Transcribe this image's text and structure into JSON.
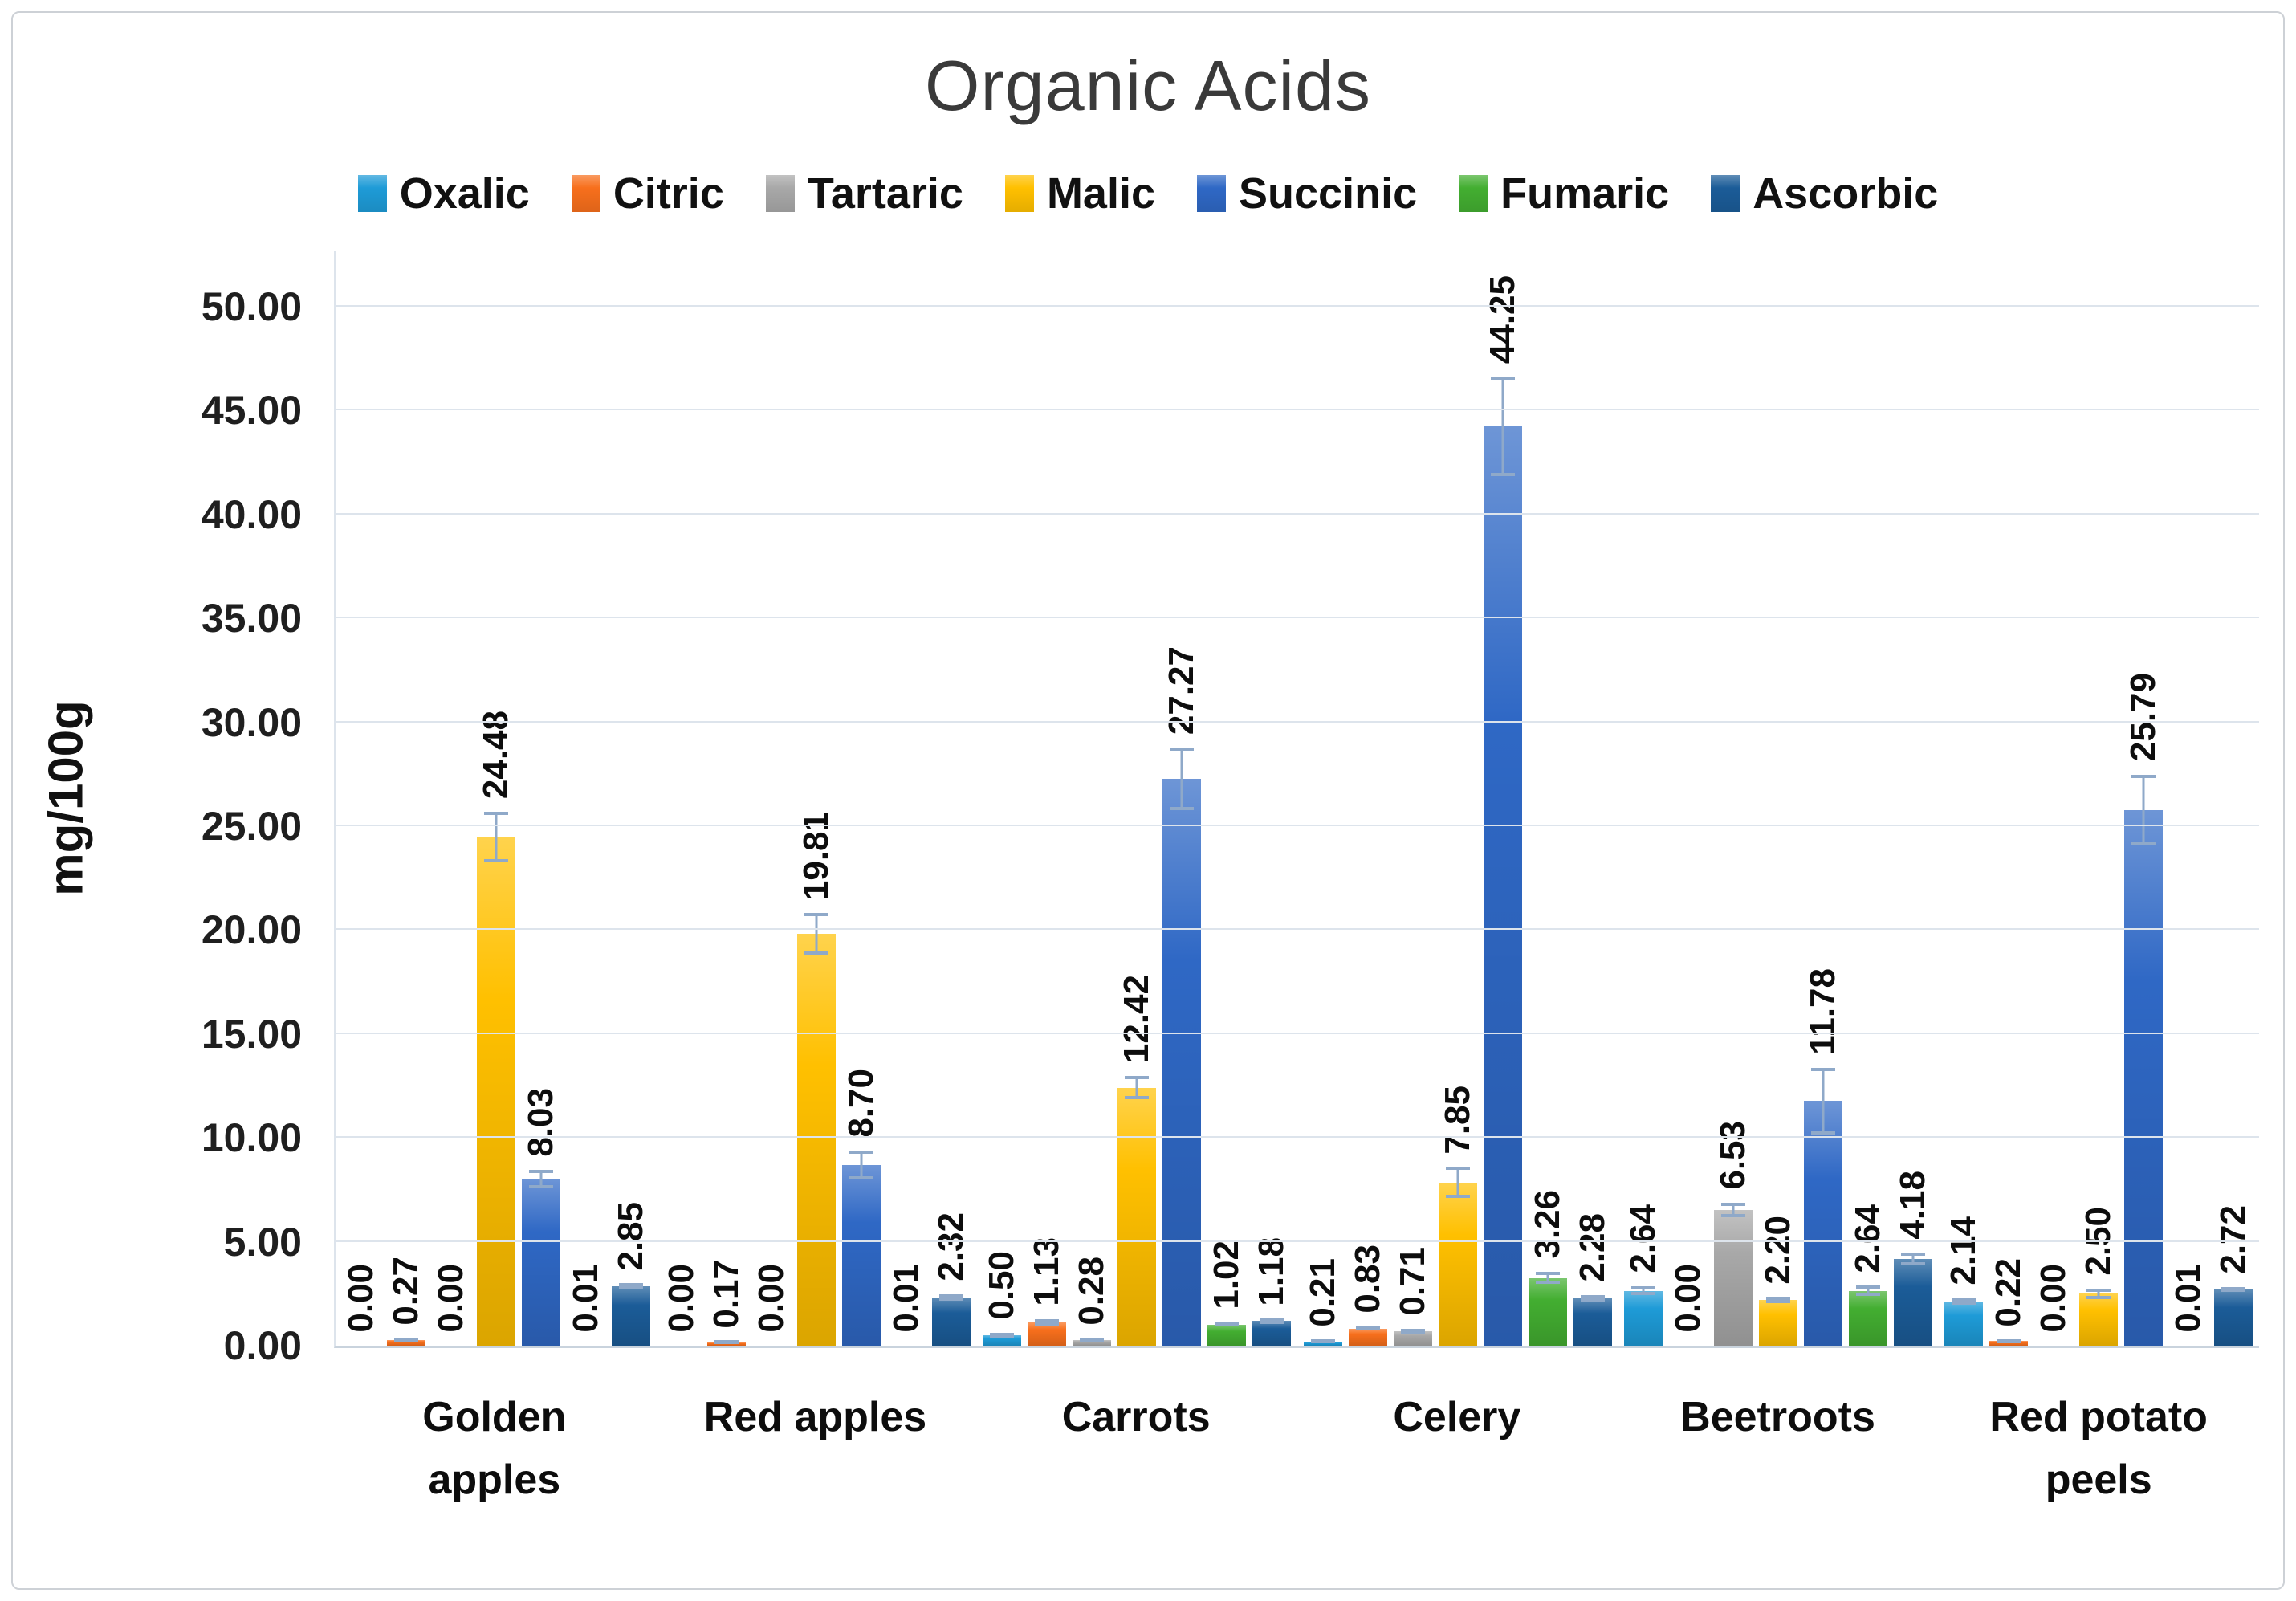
{
  "figure": {
    "title": "Organic Acids"
  },
  "chart_data": {
    "type": "bar",
    "title": "Organic Acids",
    "xlabel": "",
    "ylabel": "mg/100g",
    "ylim": [
      0,
      50
    ],
    "ytick_step": 5,
    "yticks": [
      "0.00",
      "5.00",
      "10.00",
      "15.00",
      "20.00",
      "25.00",
      "30.00",
      "35.00",
      "40.00",
      "45.00",
      "50.00"
    ],
    "grid": true,
    "legend_position": "top",
    "bar_label_decimals": 2,
    "error_bar_color": "#8fa9c9",
    "categories": [
      "Golden apples",
      "Red apples",
      "Carrots",
      "Celery",
      "Beetroots",
      "Red potato peels"
    ],
    "series": [
      {
        "name": "Oxalic",
        "color": "#1e9bd7",
        "values": [
          0.0,
          0.0,
          0.5,
          0.21,
          2.64,
          2.14
        ],
        "errors": [
          0,
          0,
          0.12,
          0.06,
          0.22,
          0.15
        ]
      },
      {
        "name": "Citric",
        "color": "#f76f1c",
        "values": [
          0.27,
          0.17,
          1.13,
          0.83,
          0.0,
          0.22
        ],
        "errors": [
          0.1,
          0.05,
          0.15,
          0.1,
          0,
          0.05
        ]
      },
      {
        "name": "Tartaric",
        "color": "#a8a8a8",
        "values": [
          0.0,
          0.0,
          0.28,
          0.71,
          6.53,
          0.0
        ],
        "errors": [
          0,
          0,
          0.1,
          0.12,
          0.35,
          0
        ]
      },
      {
        "name": "Malic",
        "color": "#ffc000",
        "values": [
          24.48,
          19.81,
          12.42,
          7.85,
          2.2,
          2.5
        ],
        "errors": [
          1.2,
          1.0,
          0.55,
          0.75,
          0.15,
          0.25
        ]
      },
      {
        "name": "Succinic",
        "color": "#2f68c5",
        "values": [
          8.03,
          8.7,
          27.27,
          44.25,
          11.78,
          25.79
        ],
        "errors": [
          0.45,
          0.7,
          1.5,
          2.4,
          1.6,
          1.7
        ]
      },
      {
        "name": "Fumaric",
        "color": "#43ae31",
        "values": [
          0.01,
          0.01,
          1.02,
          3.26,
          2.64,
          0.01
        ],
        "errors": [
          0,
          0,
          0.1,
          0.3,
          0.25,
          0
        ]
      },
      {
        "name": "Ascorbic",
        "color": "#1b5c98",
        "values": [
          2.85,
          2.32,
          1.18,
          2.28,
          4.18,
          2.72
        ],
        "errors": [
          0.15,
          0.15,
          0.12,
          0.15,
          0.3,
          0.12
        ]
      }
    ]
  }
}
